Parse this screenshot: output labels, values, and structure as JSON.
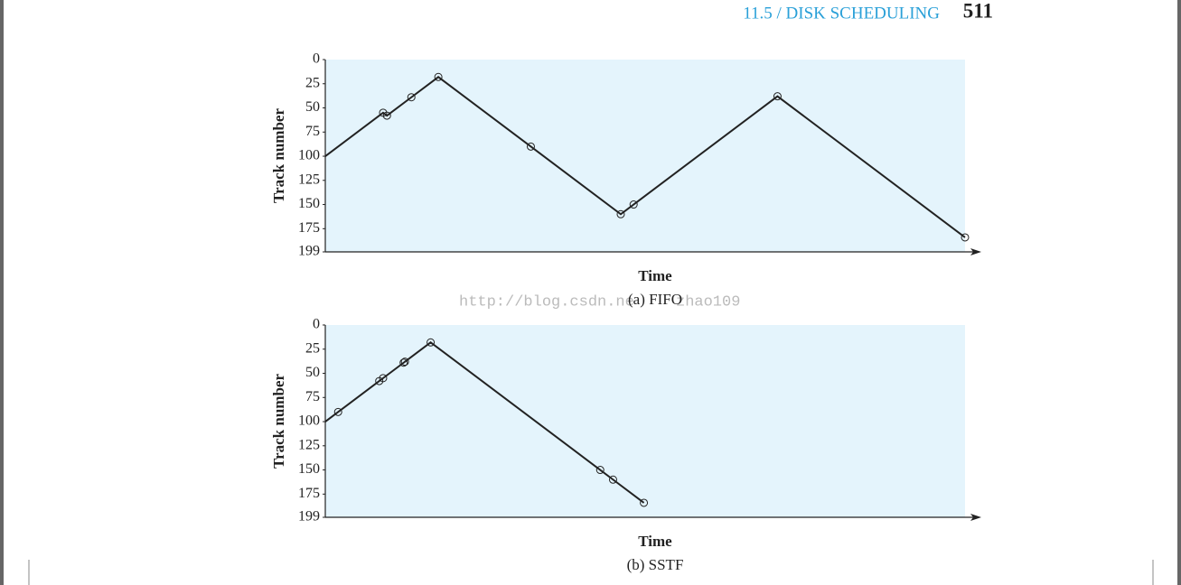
{
  "header": {
    "section": "11.5 / DISK SCHEDULING",
    "page": "511"
  },
  "watermark": [
    "http://blog.csdn.ne",
    "zhao109"
  ],
  "chart_data": [
    {
      "type": "line",
      "caption": "(a) FIFO",
      "xlabel": "Time",
      "ylabel": "Track number",
      "x": [
        0,
        45,
        48,
        67,
        88,
        160,
        230,
        240,
        352,
        498
      ],
      "series": [
        {
          "color": "#222222",
          "values": [
            100,
            55,
            58,
            39,
            18,
            90,
            160,
            150,
            38,
            184
          ]
        }
      ],
      "xlim": [
        0,
        498
      ],
      "ylim": [
        0,
        199
      ],
      "yticks": [
        0,
        25,
        50,
        75,
        100,
        125,
        150,
        175,
        199
      ],
      "y_inverted": true,
      "background": "#e4f4fc"
    },
    {
      "type": "line",
      "caption": "(b) SSTF",
      "xlabel": "Time",
      "ylabel": "Track number",
      "x": [
        0,
        10,
        42,
        45,
        61,
        62,
        82,
        214,
        224,
        248
      ],
      "series": [
        {
          "color": "#222222",
          "values": [
            100,
            90,
            58,
            55,
            39,
            38,
            18,
            150,
            160,
            184
          ]
        }
      ],
      "xlim": [
        0,
        498
      ],
      "ylim": [
        0,
        199
      ],
      "yticks": [
        0,
        25,
        50,
        75,
        100,
        125,
        150,
        175,
        199
      ],
      "y_inverted": true,
      "background": "#e4f4fc"
    }
  ]
}
